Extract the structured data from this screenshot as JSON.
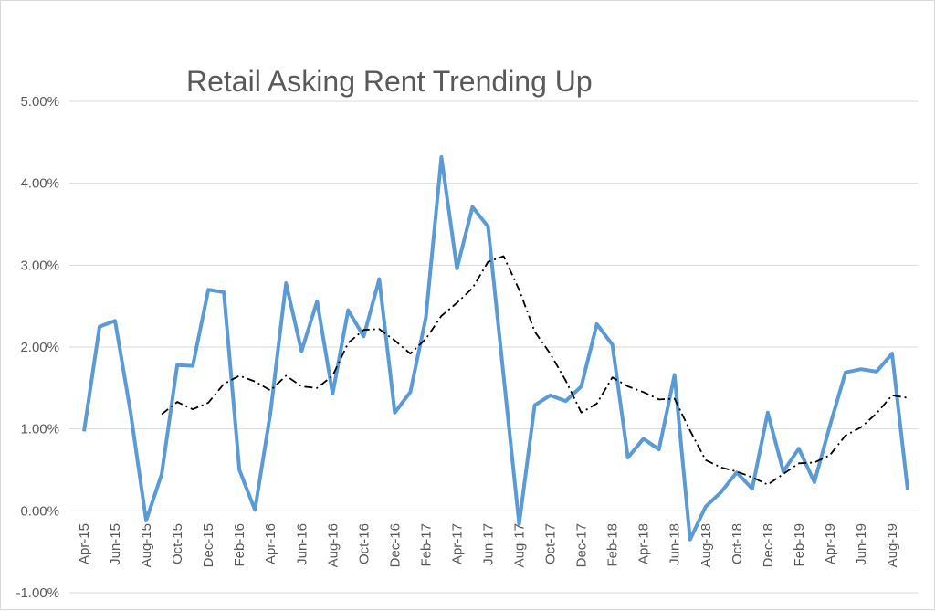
{
  "chart_data": {
    "type": "line",
    "title": "Retail Asking Rent Trending Up",
    "xlabel": "",
    "ylabel": "",
    "ylim": [
      -0.01,
      0.05
    ],
    "y_tick_values": [
      -0.01,
      0.0,
      0.01,
      0.02,
      0.03,
      0.04,
      0.05
    ],
    "y_tick_labels": [
      "-1.00%",
      "0.00%",
      "1.00%",
      "2.00%",
      "3.00%",
      "4.00%",
      "5.00%"
    ],
    "grid": "horizontal",
    "legend": "none",
    "x": [
      "Apr-15",
      "May-15",
      "Jun-15",
      "Jul-15",
      "Aug-15",
      "Sep-15",
      "Oct-15",
      "Nov-15",
      "Dec-15",
      "Jan-16",
      "Feb-16",
      "Mar-16",
      "Apr-16",
      "May-16",
      "Jun-16",
      "Jul-16",
      "Aug-16",
      "Sep-16",
      "Oct-16",
      "Nov-16",
      "Dec-16",
      "Jan-17",
      "Feb-17",
      "Mar-17",
      "Apr-17",
      "May-17",
      "Jun-17",
      "Jul-17",
      "Aug-17",
      "Sep-17",
      "Oct-17",
      "Nov-17",
      "Dec-17",
      "Jan-18",
      "Feb-18",
      "Mar-18",
      "Apr-18",
      "May-18",
      "Jun-18",
      "Jul-18",
      "Aug-18",
      "Sep-18",
      "Oct-18",
      "Nov-18",
      "Dec-18",
      "Jan-19",
      "Feb-19",
      "Mar-19",
      "Apr-19",
      "May-19",
      "Jun-19",
      "Jul-19",
      "Aug-19",
      "Sep-19"
    ],
    "x_tick_labels": [
      "Apr-15",
      "",
      "Jun-15",
      "",
      "Aug-15",
      "",
      "Oct-15",
      "",
      "Dec-15",
      "",
      "Feb-16",
      "",
      "Apr-16",
      "",
      "Jun-16",
      "",
      "Aug-16",
      "",
      "Oct-16",
      "",
      "Dec-16",
      "",
      "Feb-17",
      "",
      "Apr-17",
      "",
      "Jun-17",
      "",
      "Aug-17",
      "",
      "Oct-17",
      "",
      "Dec-17",
      "",
      "Feb-18",
      "",
      "Apr-18",
      "",
      "Jun-18",
      "",
      "Aug-18",
      "",
      "Oct-18",
      "",
      "Dec-18",
      "",
      "Feb-19",
      "",
      "Apr-19",
      "",
      "Jun-19",
      "",
      "Aug-19",
      ""
    ],
    "series": [
      {
        "style": "solid",
        "color": "#5b9bd5",
        "values": [
          0.0097,
          0.0225,
          0.0232,
          0.012,
          -0.0012,
          0.0045,
          0.0178,
          0.0177,
          0.027,
          0.0267,
          0.005,
          0.0001,
          0.012,
          0.0278,
          0.0195,
          0.0256,
          0.0143,
          0.0245,
          0.0213,
          0.0283,
          0.012,
          0.0145,
          0.0236,
          0.0432,
          0.0296,
          0.0371,
          0.0347,
          0.0165,
          -0.0016,
          0.0129,
          0.0141,
          0.0134,
          0.0152,
          0.0228,
          0.0203,
          0.0065,
          0.0088,
          0.0075,
          0.0166,
          -0.0035,
          0.0005,
          0.0023,
          0.0047,
          0.0027,
          0.012,
          0.0048,
          0.0076,
          0.0035,
          0.0104,
          0.0169,
          0.0173,
          0.017,
          0.0192,
          0.0026
        ]
      },
      {
        "style": "dash-dot",
        "color": "#000000",
        "values": [
          null,
          null,
          null,
          null,
          null,
          0.0118,
          0.0133,
          0.0124,
          0.0132,
          0.0155,
          0.0165,
          0.0158,
          0.0147,
          0.0165,
          0.0152,
          0.015,
          0.0165,
          0.0205,
          0.0221,
          0.0222,
          0.0208,
          0.0192,
          0.021,
          0.0238,
          0.0254,
          0.0272,
          0.0304,
          0.0311,
          0.027,
          0.0219,
          0.0192,
          0.0159,
          0.012,
          0.0131,
          0.0163,
          0.0152,
          0.0145,
          0.0136,
          0.0137,
          0.0098,
          0.0062,
          0.0053,
          0.0048,
          0.0041,
          0.0032,
          0.0045,
          0.0058,
          0.0059,
          0.0068,
          0.0092,
          0.0102,
          0.0119,
          0.0141,
          0.0138
        ]
      }
    ]
  }
}
